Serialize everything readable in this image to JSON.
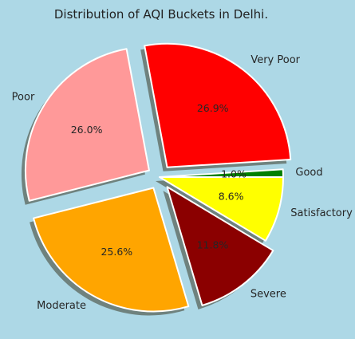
{
  "chart_data": {
    "type": "pie",
    "title": "Distribution of AQI Buckets in Delhi.",
    "slices": [
      {
        "label": "Good",
        "percent": 1.0,
        "pct_label": "1.0%",
        "color": "#008000",
        "exploded": false
      },
      {
        "label": "Very Poor",
        "percent": 26.9,
        "pct_label": "26.9%",
        "color": "#ff0000",
        "exploded": true
      },
      {
        "label": "Poor",
        "percent": 26.0,
        "pct_label": "26.0%",
        "color": "#ff9999",
        "exploded": true
      },
      {
        "label": "Moderate",
        "percent": 25.6,
        "pct_label": "25.6%",
        "color": "#ffa500",
        "exploded": true
      },
      {
        "label": "Severe",
        "percent": 11.8,
        "pct_label": "11.8%",
        "color": "#8b0000",
        "exploded": true
      },
      {
        "label": "Satisfactory",
        "percent": 8.6,
        "pct_label": "8.6%",
        "color": "#ffff00",
        "exploded": false
      }
    ],
    "start_angle_deg": 0,
    "direction": "counterclockwise",
    "shadow": true,
    "background": "#add8e6"
  }
}
